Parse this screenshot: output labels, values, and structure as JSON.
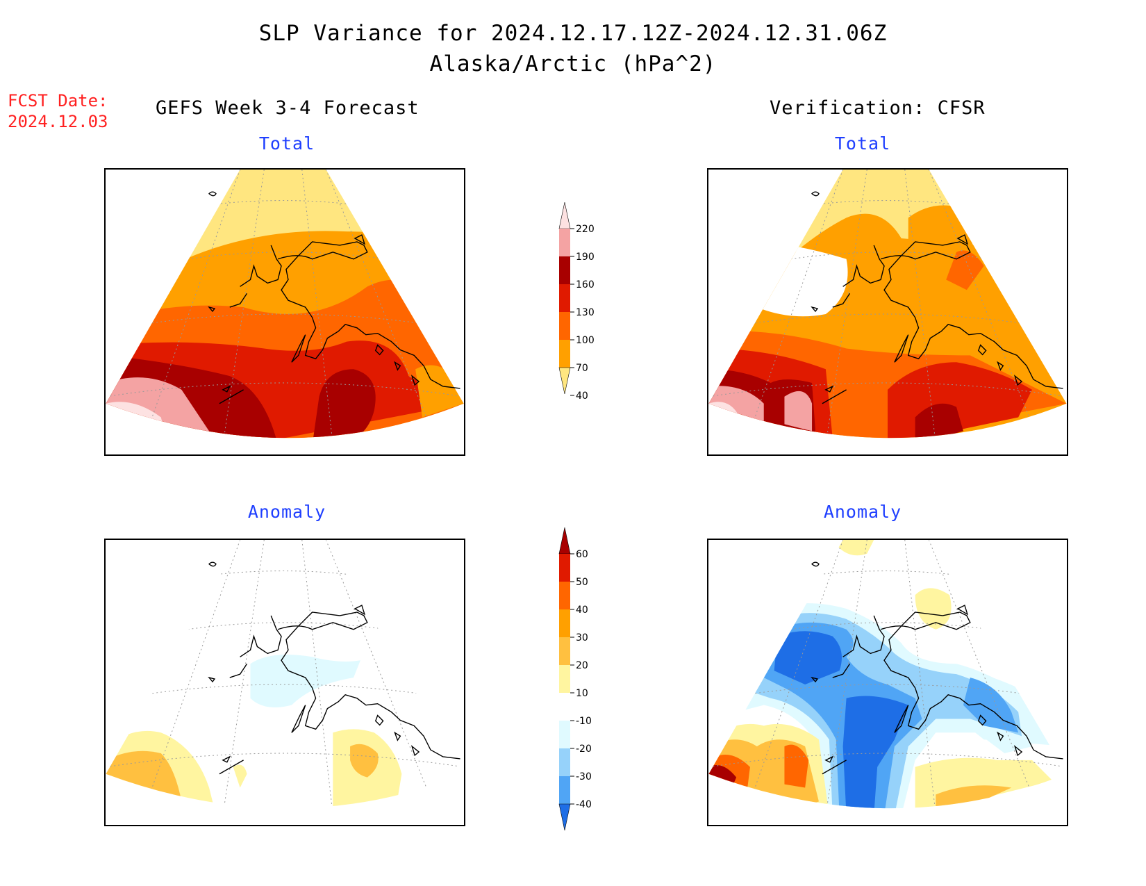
{
  "title_line1": "SLP Variance for 2024.12.17.12Z-2024.12.31.06Z",
  "title_line2": "Alaska/Arctic (hPa^2)",
  "fcst_date_label": "FCST Date:",
  "fcst_date_value": "2024.12.03",
  "left_header": "GEFS Week 3-4 Forecast",
  "right_header": "Verification: CFSR",
  "panels": {
    "fcst_total_title": "Total",
    "obs_total_title": "Total",
    "fcst_anom_title": "Anomaly",
    "obs_anom_title": "Anomaly"
  },
  "total_colorbar": {
    "levels": [
      "220",
      "190",
      "160",
      "130",
      "100",
      "70",
      "40"
    ],
    "colors": [
      "#fde2e2",
      "#f4a3a3",
      "#a80000",
      "#e01a00",
      "#ff6600",
      "#ffa000",
      "#ffe680"
    ]
  },
  "anomaly_colorbar": {
    "levels": [
      "60",
      "50",
      "40",
      "30",
      "20",
      "10",
      "-10",
      "-20",
      "-30",
      "-40"
    ],
    "colors": [
      "#a80000",
      "#e01a00",
      "#ff6600",
      "#ffa000",
      "#ffc040",
      "#fff5a0",
      "#ffffff",
      "#e0faff",
      "#96d2fa",
      "#50a5f5",
      "#1e6ee6"
    ]
  }
}
